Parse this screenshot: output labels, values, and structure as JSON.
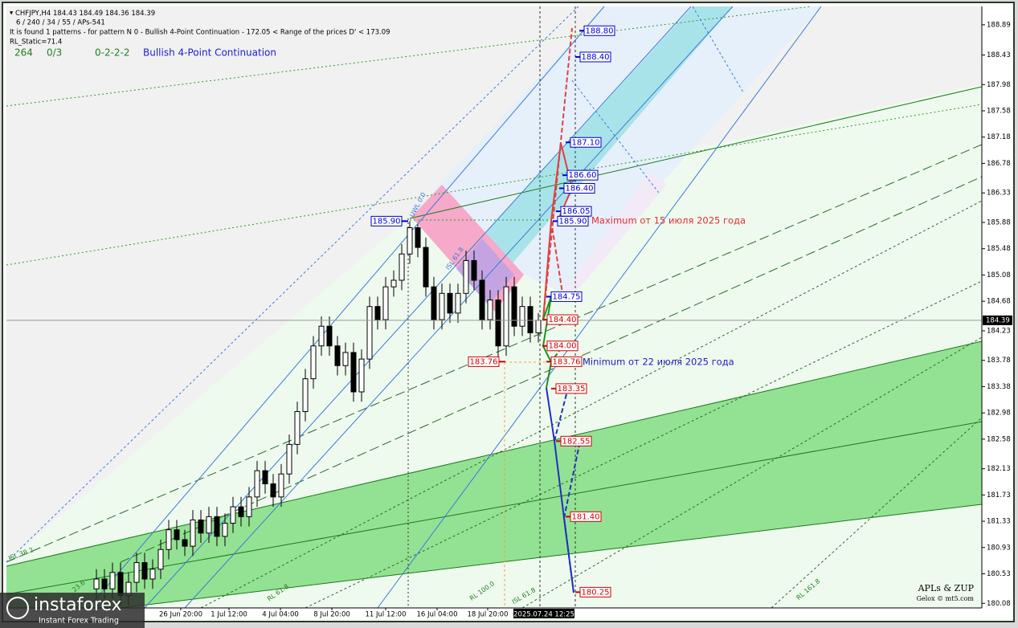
{
  "header": {
    "symbol_line": "CHFJPY,H4  184.43 184.49 184.36 184.39",
    "params": "6 / 240 / 34 / 55 / APs-541",
    "found": "It is found 1 patterns  -  for pattern N 0 - Bullish 4-Point Continuation - 172.05 < Range of the prices D' < 173.09",
    "rl_static": "RL_Static=71.4",
    "stats": [
      "264",
      "0/3",
      "0-2-2-2"
    ],
    "pattern": "Bullish 4-Point Continuation"
  },
  "chart_data": {
    "type": "candlestick",
    "open": [
      180.3,
      180.45,
      180.3,
      180.55,
      180.2,
      180.4,
      180.7,
      180.45,
      180.6,
      180.9,
      181.2,
      181.05,
      180.95,
      181.35,
      181.15,
      181.4,
      181.1,
      181.3,
      181.55,
      181.4,
      181.7,
      182.1,
      181.9,
      181.7,
      182.05,
      182.5,
      183.0,
      183.5,
      184.0,
      184.3,
      184.0,
      183.7,
      183.9,
      183.3,
      183.8,
      184.6,
      184.4,
      184.9,
      185.0,
      185.4,
      185.8,
      185.5,
      184.9,
      184.4,
      184.8,
      184.5,
      184.8,
      185.3,
      185.0,
      184.4,
      184.7,
      184.0,
      184.9,
      184.3,
      184.6,
      184.2
    ],
    "high": [
      180.6,
      180.6,
      180.7,
      180.7,
      180.55,
      180.85,
      180.85,
      180.75,
      181.05,
      181.35,
      181.35,
      181.2,
      181.5,
      181.5,
      181.55,
      181.55,
      181.45,
      181.7,
      181.7,
      181.85,
      182.25,
      182.25,
      182.05,
      182.2,
      182.65,
      183.15,
      183.65,
      184.15,
      184.45,
      184.45,
      184.15,
      184.05,
      184.05,
      183.95,
      184.75,
      184.75,
      185.05,
      185.15,
      185.55,
      185.9,
      185.85,
      185.65,
      185.05,
      184.95,
      184.95,
      184.95,
      185.45,
      185.45,
      185.15,
      184.85,
      184.85,
      185.05,
      185.05,
      184.75,
      184.75,
      184.5
    ],
    "low": [
      180.15,
      180.15,
      180.15,
      180.05,
      180.05,
      180.25,
      180.3,
      180.3,
      180.45,
      180.75,
      180.9,
      180.8,
      180.8,
      181.0,
      181.0,
      180.95,
      180.95,
      181.15,
      181.25,
      181.25,
      181.55,
      181.75,
      181.55,
      181.55,
      181.9,
      182.35,
      182.85,
      183.35,
      183.85,
      183.85,
      183.55,
      183.55,
      183.15,
      183.15,
      183.65,
      184.25,
      184.25,
      184.75,
      184.85,
      185.25,
      185.35,
      184.75,
      184.25,
      184.25,
      184.35,
      184.35,
      184.65,
      184.85,
      184.25,
      184.25,
      183.76,
      183.85,
      184.15,
      184.15,
      184.05,
      184.05
    ],
    "close": [
      180.45,
      180.3,
      180.55,
      180.2,
      180.4,
      180.7,
      180.45,
      180.6,
      180.9,
      181.2,
      181.05,
      180.95,
      181.35,
      181.15,
      181.4,
      181.1,
      181.3,
      181.55,
      181.4,
      181.7,
      182.1,
      181.9,
      181.7,
      182.05,
      182.5,
      183.0,
      183.5,
      184.0,
      184.3,
      184.0,
      183.7,
      183.9,
      183.3,
      183.8,
      184.6,
      184.4,
      184.9,
      185.0,
      185.4,
      185.8,
      185.5,
      184.9,
      184.4,
      184.8,
      184.5,
      184.8,
      185.3,
      185.0,
      184.4,
      184.7,
      184.0,
      184.9,
      184.3,
      184.6,
      184.2,
      184.39
    ],
    "xlim": [
      -11.2,
      110.2
    ],
    "ylim": [
      180.01,
      189.17
    ],
    "yticks": [
      188.89,
      188.43,
      187.98,
      187.58,
      187.18,
      186.78,
      186.33,
      185.88,
      185.48,
      185.08,
      184.68,
      184.23,
      183.78,
      183.38,
      182.98,
      182.58,
      182.13,
      181.73,
      181.33,
      180.93,
      180.53,
      180.08
    ],
    "xticks": [
      {
        "value": 10.5,
        "label": "26 Jun 20:00"
      },
      {
        "value": 16.5,
        "label": "1 Jul 12:00"
      },
      {
        "value": 22.9,
        "label": "4 Jul 04:00"
      },
      {
        "value": 29.3,
        "label": "8 Jul 20:00"
      },
      {
        "value": 36,
        "label": "11 Jul 12:00"
      },
      {
        "value": 42.4,
        "label": "16 Jul 04:00"
      },
      {
        "value": 48.7,
        "label": "18 Jul 20:00"
      }
    ],
    "current_time": {
      "value": 55.7,
      "label": "2025.07.24 12:25"
    },
    "current_price": 184.39,
    "levels": [
      {
        "value": 185.9,
        "label": "185.90",
        "color": "#0000c8"
      },
      {
        "value": 188.8,
        "label": "188.80",
        "color": "#0000c8"
      },
      {
        "value": 188.4,
        "label": "188.40",
        "color": "#0000c8"
      },
      {
        "value": 187.1,
        "label": "187.10",
        "color": "#0000c8"
      },
      {
        "value": 186.6,
        "label": "186.60",
        "color": "#0000c8"
      },
      {
        "value": 186.4,
        "label": "186.40",
        "color": "#0000c8"
      },
      {
        "value": 186.05,
        "label": "186.05",
        "color": "#0000c8"
      },
      {
        "value": 185.9,
        "label": "185.90",
        "color": "#0000c8"
      },
      {
        "value": 184.75,
        "label": "184.75",
        "color": "#0000c8"
      },
      {
        "value": 184.4,
        "label": "184.40",
        "color": "#d00000"
      },
      {
        "value": 184,
        "label": "184.00",
        "color": "#d00000"
      },
      {
        "value": 183.76,
        "label": "183.76",
        "color": "#d00000"
      },
      {
        "value": 183.76,
        "label": "183.76",
        "color": "#d00000"
      },
      {
        "value": 183.35,
        "label": "183.35",
        "color": "#d00000"
      },
      {
        "value": 182.55,
        "label": "182.55",
        "color": "#d00000"
      },
      {
        "value": 181.4,
        "label": "181.40",
        "color": "#d00000"
      },
      {
        "value": 180.25,
        "label": "180.25",
        "color": "#d00000"
      }
    ],
    "annotations": [
      {
        "text": "Maximum от 15 июля 2025 года",
        "color": "#e03030"
      },
      {
        "text": "Minimum от 22 июля 2025 года",
        "color": "#2020c0"
      }
    ],
    "line_labels": [
      "UWL 0.0",
      "ISL 61.8",
      "ISL 38.2",
      "23.6",
      "RL 61.8",
      "RL 100.0",
      "ISL 61.8",
      "RL 161.8"
    ]
  },
  "credits": {
    "title": "APLs & ZUP",
    "site": "Gelox © mt5.com"
  },
  "watermark": {
    "brand": "instaforex",
    "tagline": "Instant Forex Trading"
  }
}
